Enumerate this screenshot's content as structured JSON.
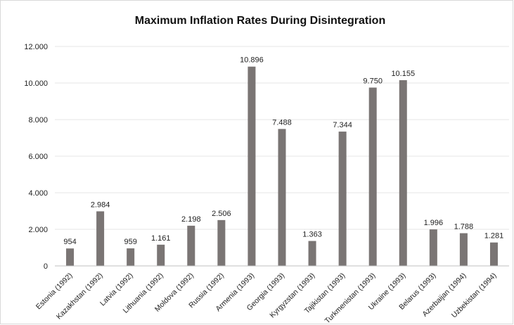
{
  "chart_data": {
    "type": "bar",
    "title": "Maximum Inflation Rates During Disintegration",
    "categories": [
      "Estonia (1992)",
      "Kazakhstan (1992)",
      "Latvia (1992)",
      "Lithuania (1992)",
      "Moldova (1992)",
      "Russia (1992)",
      "Armenia (1993)",
      "Georgia (1993)",
      "Kyrgyzstan (1993)",
      "Tajikistan (1993)",
      "Turkmenistan (1993)",
      "Ukraine (1993)",
      "Belarus (1993)",
      "Azerbaijan (1994)",
      "Uzbekistan (1994)"
    ],
    "values": [
      954,
      2984,
      959,
      1161,
      2198,
      2506,
      10896,
      7488,
      1363,
      7344,
      9750,
      10155,
      1996,
      1788,
      1281
    ],
    "value_labels": [
      "954",
      "2.984",
      "959",
      "1.161",
      "2.198",
      "2.506",
      "10.896",
      "7.488",
      "1.363",
      "7.344",
      "9.750",
      "10.155",
      "1.996",
      "1.788",
      "1.281"
    ],
    "ylim": [
      0,
      12000
    ],
    "yticks": [
      0,
      2000,
      4000,
      6000,
      8000,
      10000,
      12000
    ],
    "ytick_labels": [
      "0",
      "2.000",
      "4.000",
      "6.000",
      "8.000",
      "10.000",
      "12.000"
    ],
    "xlabel": "",
    "ylabel": "",
    "grid": true,
    "bar_color": "#7a7574"
  }
}
